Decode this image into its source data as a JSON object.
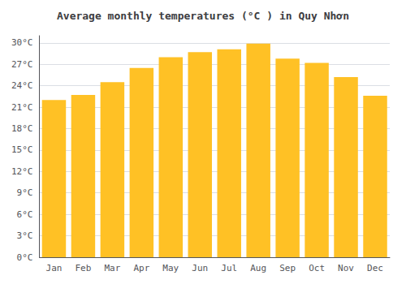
{
  "chart_data": {
    "type": "bar",
    "title": "Average monthly temperatures (°C ) in Quy Nhơn",
    "categories": [
      "Jan",
      "Feb",
      "Mar",
      "Apr",
      "May",
      "Jun",
      "Jul",
      "Aug",
      "Sep",
      "Oct",
      "Nov",
      "Dec"
    ],
    "values": [
      22.0,
      22.7,
      24.5,
      26.5,
      28.0,
      28.7,
      29.1,
      29.9,
      27.8,
      27.2,
      25.2,
      22.6
    ],
    "color": "#FFC125",
    "ylim": [
      0,
      31
    ],
    "yticks": [
      {
        "value": 0,
        "label": "0°C"
      },
      {
        "value": 3,
        "label": "3°C"
      },
      {
        "value": 6,
        "label": "6°C"
      },
      {
        "value": 9,
        "label": "9°C"
      },
      {
        "value": 12,
        "label": "12°C"
      },
      {
        "value": 15,
        "label": "15°C"
      },
      {
        "value": 18,
        "label": "18°C"
      },
      {
        "value": 21,
        "label": "21°C"
      },
      {
        "value": 24,
        "label": "24°C"
      },
      {
        "value": 27,
        "label": "27°C"
      },
      {
        "value": 30,
        "label": "30°C"
      }
    ],
    "grid": true
  }
}
